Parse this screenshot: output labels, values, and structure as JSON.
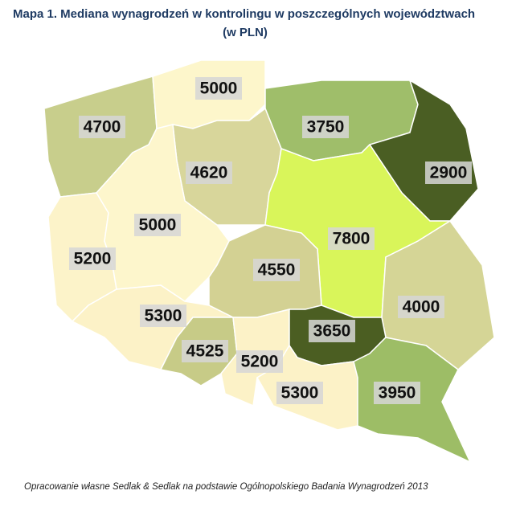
{
  "header": {
    "title": "Mapa 1. Mediana wynagrodzeń w kontrolingu w poszczególnych województwach",
    "subtitle": "(w PLN)"
  },
  "regions": [
    {
      "value": "4700",
      "color": "#c8ce8c"
    },
    {
      "value": "5000",
      "color": "#fdf6cb"
    },
    {
      "value": "3750",
      "color": "#9fbe6a"
    },
    {
      "value": "2900",
      "color": "#4a5e23"
    },
    {
      "value": "4620",
      "color": "#d8d69b"
    },
    {
      "value": "7800",
      "color": "#d9f55a"
    },
    {
      "value": "5200",
      "color": "#fcf3c9"
    },
    {
      "value": "5000",
      "color": "#fdf6cc"
    },
    {
      "value": "4550",
      "color": "#d3d193"
    },
    {
      "value": "4000",
      "color": "#d5d596"
    },
    {
      "value": "5300",
      "color": "#fcf2c7"
    },
    {
      "value": "4525",
      "color": "#c7cb87"
    },
    {
      "value": "5200",
      "color": "#fcf2c7"
    },
    {
      "value": "3650",
      "color": "#4b5e22"
    },
    {
      "value": "5300",
      "color": "#fcf2c7"
    },
    {
      "value": "3950",
      "color": "#9dbd66"
    }
  ],
  "source": "Opracowanie własne Sedlak & Sedlak na podstawie Ogólnopolskiego Badania Wynagrodzeń 2013"
}
